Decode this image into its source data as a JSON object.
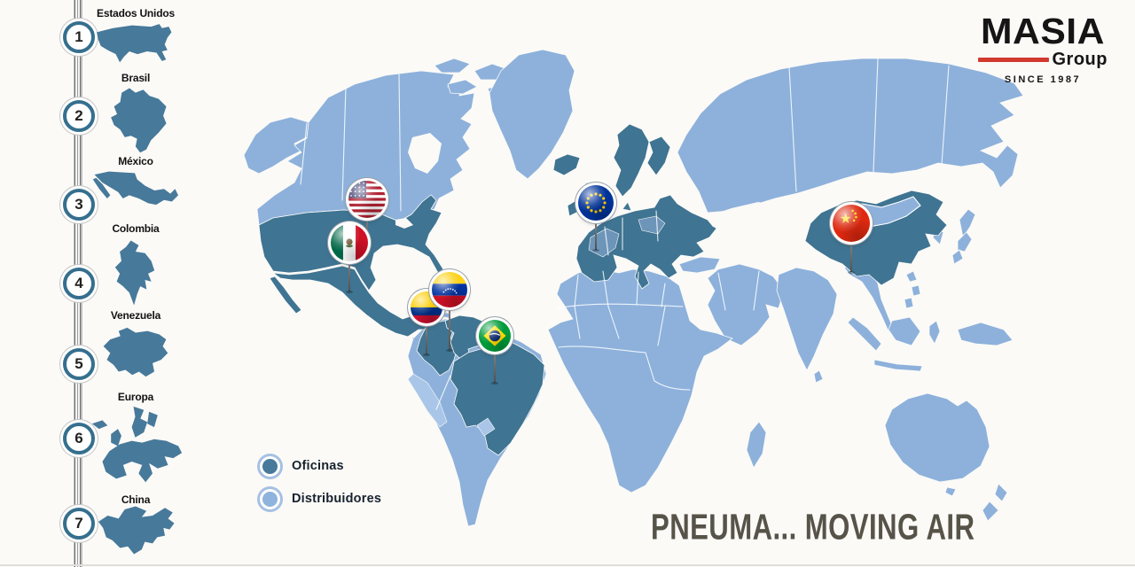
{
  "page": {
    "background": "#fbfaf7"
  },
  "logo": {
    "name": "MASIA",
    "word": "Group",
    "since": "SINCE 1987",
    "accent_color": "#d23a2e"
  },
  "tagline": {
    "text": "PNEUMA... MOVING AIR",
    "color": "#575349"
  },
  "legend": {
    "items": [
      {
        "label": "Oficinas",
        "type": "office",
        "color": "#47799a"
      },
      {
        "label": "Distribuidores",
        "type": "distributor",
        "color": "#8fb3dc"
      }
    ]
  },
  "sidebar": {
    "items": [
      {
        "number": "1",
        "label": "Estados Unidos",
        "icon": "usa-silhouette"
      },
      {
        "number": "2",
        "label": "Brasil",
        "icon": "brasil-silhouette"
      },
      {
        "number": "3",
        "label": "México",
        "icon": "mexico-silhouette"
      },
      {
        "number": "4",
        "label": "Colombia",
        "icon": "colombia-silhouette"
      },
      {
        "number": "5",
        "label": "Venezuela",
        "icon": "venezuela-silhouette"
      },
      {
        "number": "6",
        "label": "Europa",
        "icon": "europa-silhouette"
      },
      {
        "number": "7",
        "label": "China",
        "icon": "china-silhouette"
      }
    ]
  },
  "map": {
    "office_color": "#3f7492",
    "distributor_color": "#8db1db",
    "pins": [
      {
        "id": "estados-unidos",
        "country": "Estados Unidos",
        "icon": "usa-flag"
      },
      {
        "id": "mexico",
        "country": "México",
        "icon": "mexico-flag"
      },
      {
        "id": "colombia",
        "country": "Colombia",
        "icon": "colombia-flag"
      },
      {
        "id": "venezuela",
        "country": "Venezuela",
        "icon": "venezuela-flag"
      },
      {
        "id": "brasil",
        "country": "Brasil",
        "icon": "brasil-flag"
      },
      {
        "id": "europa",
        "country": "Europa",
        "icon": "eu-flag"
      },
      {
        "id": "china",
        "country": "China",
        "icon": "china-flag"
      }
    ]
  }
}
